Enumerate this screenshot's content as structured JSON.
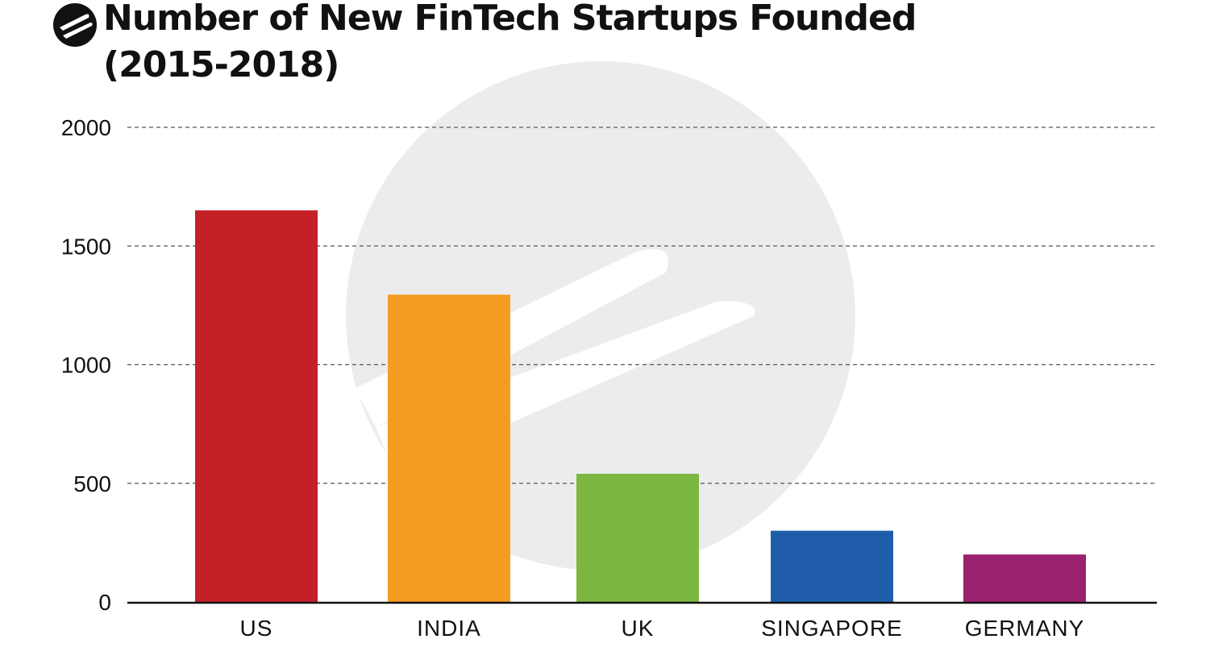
{
  "header": {
    "title": "Number of New FinTech Startups Founded",
    "subtitle": "(2015-2018)",
    "logo_icon": "fintech-logo-icon"
  },
  "colors": {
    "US": "#c42028",
    "INDIA": "#f59d23",
    "UK": "#7cb741",
    "SINGAPORE": "#1f5daa",
    "GERMANY": "#9b2270",
    "grid": "#555555",
    "watermark": "#ececed"
  },
  "chart_data": {
    "type": "bar",
    "title": "Number of New FinTech Startups Founded (2015-2018)",
    "xlabel": "",
    "ylabel": "",
    "categories": [
      "US",
      "INDIA",
      "UK",
      "SINGAPORE",
      "GERMANY"
    ],
    "values": [
      1650,
      1295,
      540,
      300,
      200
    ],
    "ylim": [
      0,
      2000
    ],
    "yticks": [
      "0",
      "500",
      "1000",
      "1500",
      "2000"
    ],
    "grid": "horizontal dashed",
    "legend": "none"
  }
}
